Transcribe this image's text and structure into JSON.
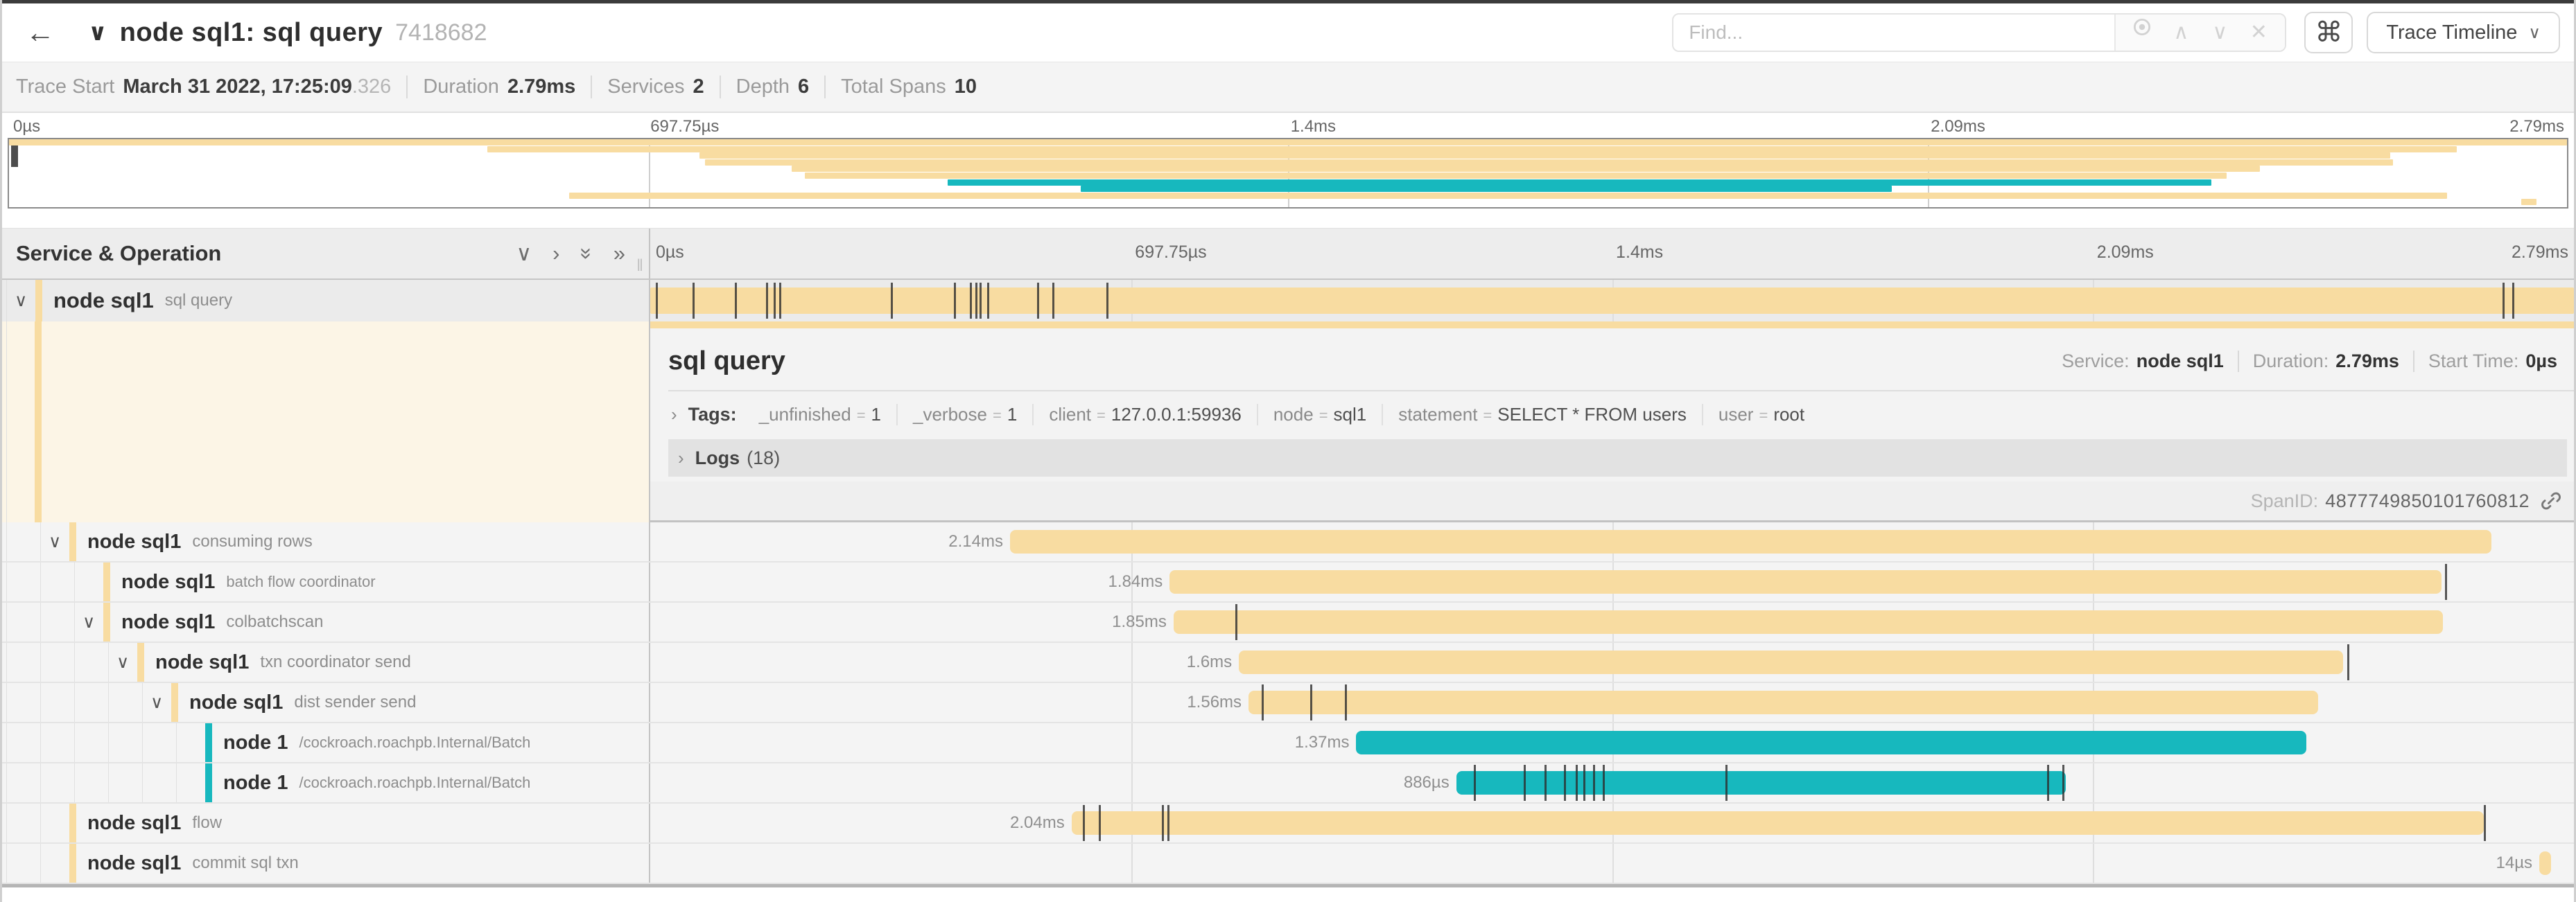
{
  "header": {
    "back": "←",
    "collapser": "∨",
    "title": "node sql1: sql query",
    "trace_id": "7418682",
    "find_placeholder": "Find...",
    "keyboard_shortcut": "⌘",
    "view_switcher": "Trace Timeline",
    "view_caret": "∨"
  },
  "trace_meta": [
    {
      "label": "Trace Start",
      "value": "March 31 2022, 17:25:09",
      "suffix": ".326"
    },
    {
      "label": "Duration",
      "value": "2.79ms",
      "suffix": ""
    },
    {
      "label": "Services",
      "value": "2",
      "suffix": ""
    },
    {
      "label": "Depth",
      "value": "6",
      "suffix": ""
    },
    {
      "label": "Total Spans",
      "value": "10",
      "suffix": ""
    }
  ],
  "timeline": {
    "ticks": [
      "0µs",
      "697.75µs",
      "1.4ms",
      "2.09ms",
      "2.79ms"
    ],
    "duration_total": "2.79ms"
  },
  "tree_header": {
    "title": "Service & Operation"
  },
  "colors": {
    "tan": "#F8DCA1",
    "teal": "#17B8BE"
  },
  "spans": [
    {
      "service": "node sql1",
      "operation": "sql query",
      "color": "#F8DCA1",
      "depth": 0,
      "expandable": true,
      "selected": true,
      "label": "",
      "start": 0,
      "end": 100,
      "ticks": [
        0.3,
        2.2,
        4.4,
        6,
        6.4,
        6.7,
        12.5,
        15.8,
        16.6,
        16.9,
        17.1,
        17.5,
        20.1,
        20.9,
        23.7,
        96.3,
        96.8
      ]
    },
    {
      "service": "node sql1",
      "operation": "consuming rows",
      "color": "#F8DCA1",
      "depth": 1,
      "expandable": true,
      "selected": false,
      "label": "2.14ms",
      "start": 18.7,
      "end": 95.7,
      "ticks": []
    },
    {
      "service": "node sql1",
      "operation": "batch flow coordinator",
      "color": "#F8DCA1",
      "depth": 2,
      "expandable": false,
      "selected": false,
      "label": "1.84ms",
      "start": 27,
      "end": 93.1,
      "ticks": [
        93.3
      ]
    },
    {
      "service": "node sql1",
      "operation": "colbatchscan",
      "color": "#F8DCA1",
      "depth": 2,
      "expandable": true,
      "selected": false,
      "label": "1.85ms",
      "start": 27.2,
      "end": 93.2,
      "ticks": [
        30.4
      ]
    },
    {
      "service": "node sql1",
      "operation": "txn coordinator send",
      "color": "#F8DCA1",
      "depth": 3,
      "expandable": true,
      "selected": false,
      "label": "1.6ms",
      "start": 30.6,
      "end": 88,
      "ticks": [
        88.2
      ]
    },
    {
      "service": "node sql1",
      "operation": "dist sender send",
      "color": "#F8DCA1",
      "depth": 4,
      "expandable": true,
      "selected": false,
      "label": "1.56ms",
      "start": 31.1,
      "end": 86.7,
      "ticks": [
        31.8,
        34.3,
        36.1
      ]
    },
    {
      "service": "node 1",
      "operation": "/cockroach.roachpb.Internal/Batch",
      "color": "#17B8BE",
      "depth": 5,
      "expandable": false,
      "selected": false,
      "label": "1.37ms",
      "start": 36.7,
      "end": 86.1,
      "ticks": []
    },
    {
      "service": "node 1",
      "operation": "/cockroach.roachpb.Internal/Batch",
      "color": "#17B8BE",
      "depth": 5,
      "expandable": false,
      "selected": false,
      "label": "886µs",
      "start": 41.9,
      "end": 73.6,
      "ticks": [
        42.8,
        45.4,
        46.5,
        47.5,
        48.1,
        48.5,
        49,
        49.5,
        55.9,
        72.6,
        73.4
      ]
    },
    {
      "service": "node sql1",
      "operation": "flow",
      "color": "#F8DCA1",
      "depth": 1,
      "expandable": false,
      "selected": false,
      "label": "2.04ms",
      "start": 21.9,
      "end": 95.3,
      "ticks": [
        22.5,
        23.3,
        26.6,
        26.9,
        95.3
      ]
    },
    {
      "service": "node sql1",
      "operation": "commit sql txn",
      "color": "#F8DCA1",
      "depth": 1,
      "expandable": false,
      "selected": false,
      "label": "14µs",
      "start": 98.2,
      "end": 98.8,
      "ticks": []
    }
  ],
  "detail": {
    "title": "sql query",
    "service_label": "Service:",
    "service": "node sql1",
    "duration_label": "Duration:",
    "duration": "2.79ms",
    "start_label": "Start Time:",
    "start": "0µs",
    "caret": "›",
    "tags_label": "Tags:",
    "tags": [
      {
        "key": "_unfinished",
        "value": "1"
      },
      {
        "key": "_verbose",
        "value": "1"
      },
      {
        "key": "client",
        "value": "127.0.0.1:59936"
      },
      {
        "key": "node",
        "value": "sql1"
      },
      {
        "key": "statement",
        "value": "SELECT * FROM users"
      },
      {
        "key": "user",
        "value": "root"
      }
    ],
    "logs_label": "Logs",
    "logs_count": "(18)",
    "span_id_label": "SpanID:",
    "span_id": "4877749850101760812"
  }
}
